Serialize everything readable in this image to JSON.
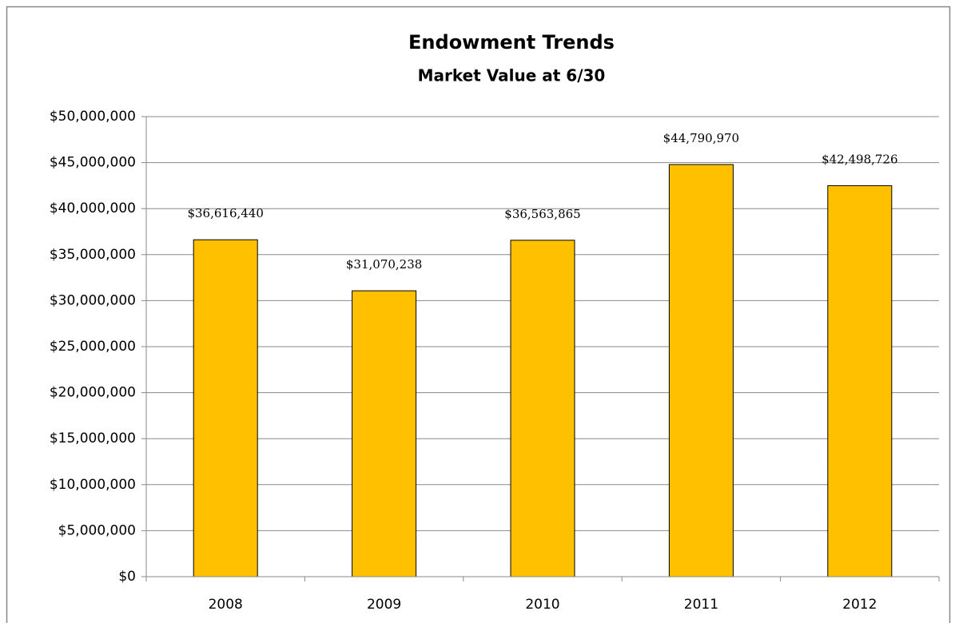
{
  "chart_data": {
    "type": "bar",
    "title": "Endowment Trends",
    "subtitle": "Market Value at 6/30",
    "categories": [
      "2008",
      "2009",
      "2010",
      "2011",
      "2012"
    ],
    "values": [
      36616440,
      31070238,
      36563865,
      44790970,
      42498726
    ],
    "value_labels": [
      "$36,616,440",
      "$31,070,238",
      "$36,563,865",
      "$44,790,970",
      "$42,498,726"
    ],
    "color": "#ffc000",
    "ylim": [
      0,
      50000000
    ],
    "yticks": [
      {
        "value": 0,
        "label": "$0"
      },
      {
        "value": 5000000,
        "label": "$5,000,000"
      },
      {
        "value": 10000000,
        "label": "$10,000,000"
      },
      {
        "value": 15000000,
        "label": "$15,000,000"
      },
      {
        "value": 20000000,
        "label": "$20,000,000"
      },
      {
        "value": 25000000,
        "label": "$25,000,000"
      },
      {
        "value": 30000000,
        "label": "$30,000,000"
      },
      {
        "value": 35000000,
        "label": "$35,000,000"
      },
      {
        "value": 40000000,
        "label": "$40,000,000"
      },
      {
        "value": 45000000,
        "label": "$45,000,000"
      },
      {
        "value": 50000000,
        "label": "$50,000,000"
      }
    ],
    "grid": true
  }
}
